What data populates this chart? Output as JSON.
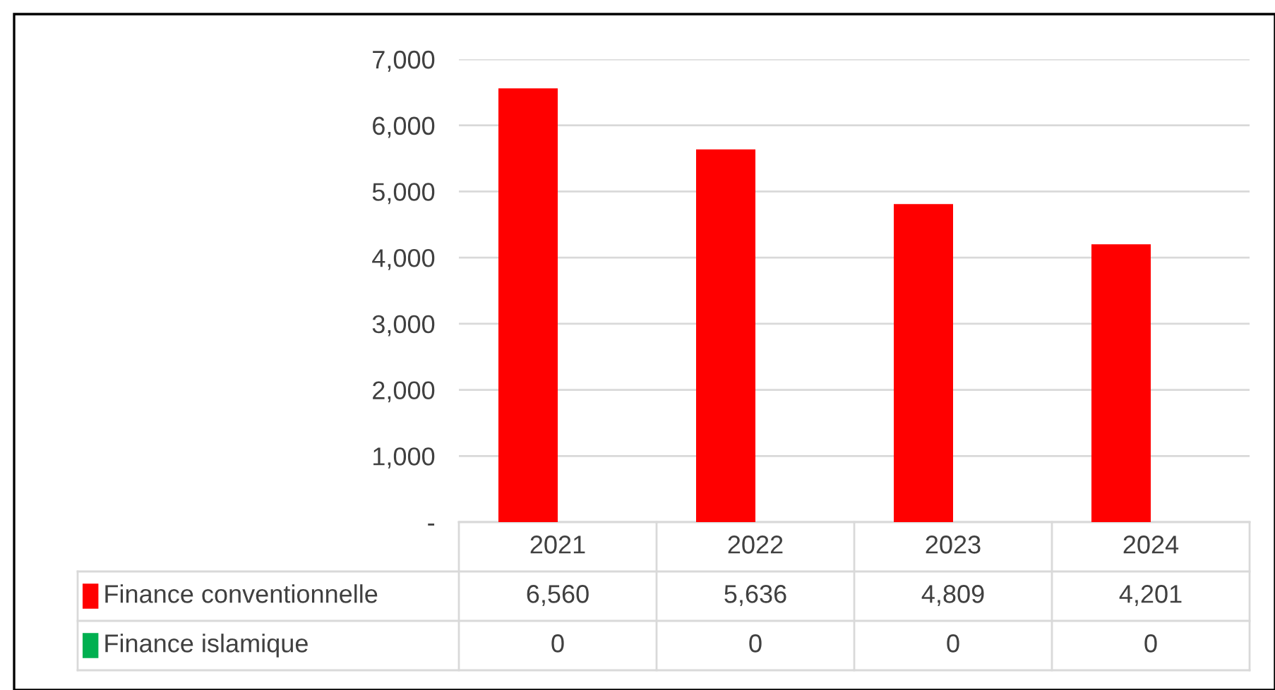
{
  "chart_data": {
    "type": "bar",
    "categories": [
      "2021",
      "2022",
      "2023",
      "2024"
    ],
    "series": [
      {
        "name": "Finance conventionnelle",
        "color": "#ff0000",
        "values": [
          6560,
          5636,
          4809,
          4201
        ],
        "value_labels": [
          "6,560",
          "5,636",
          "4,809",
          "4,201"
        ]
      },
      {
        "name": "Finance islamique",
        "color": "#00b050",
        "values": [
          0,
          0,
          0,
          0
        ],
        "value_labels": [
          "0",
          "0",
          "0",
          "0"
        ]
      }
    ],
    "ylim": [
      0,
      7000
    ],
    "yticks": [
      {
        "value": 0,
        "label": "-"
      },
      {
        "value": 1000,
        "label": "1,000"
      },
      {
        "value": 2000,
        "label": "2,000"
      },
      {
        "value": 3000,
        "label": "3,000"
      },
      {
        "value": 4000,
        "label": "4,000"
      },
      {
        "value": 5000,
        "label": "5,000"
      },
      {
        "value": 6000,
        "label": "6,000"
      },
      {
        "value": 7000,
        "label": "7,000"
      }
    ],
    "grid": "y",
    "legend": "bottom"
  }
}
